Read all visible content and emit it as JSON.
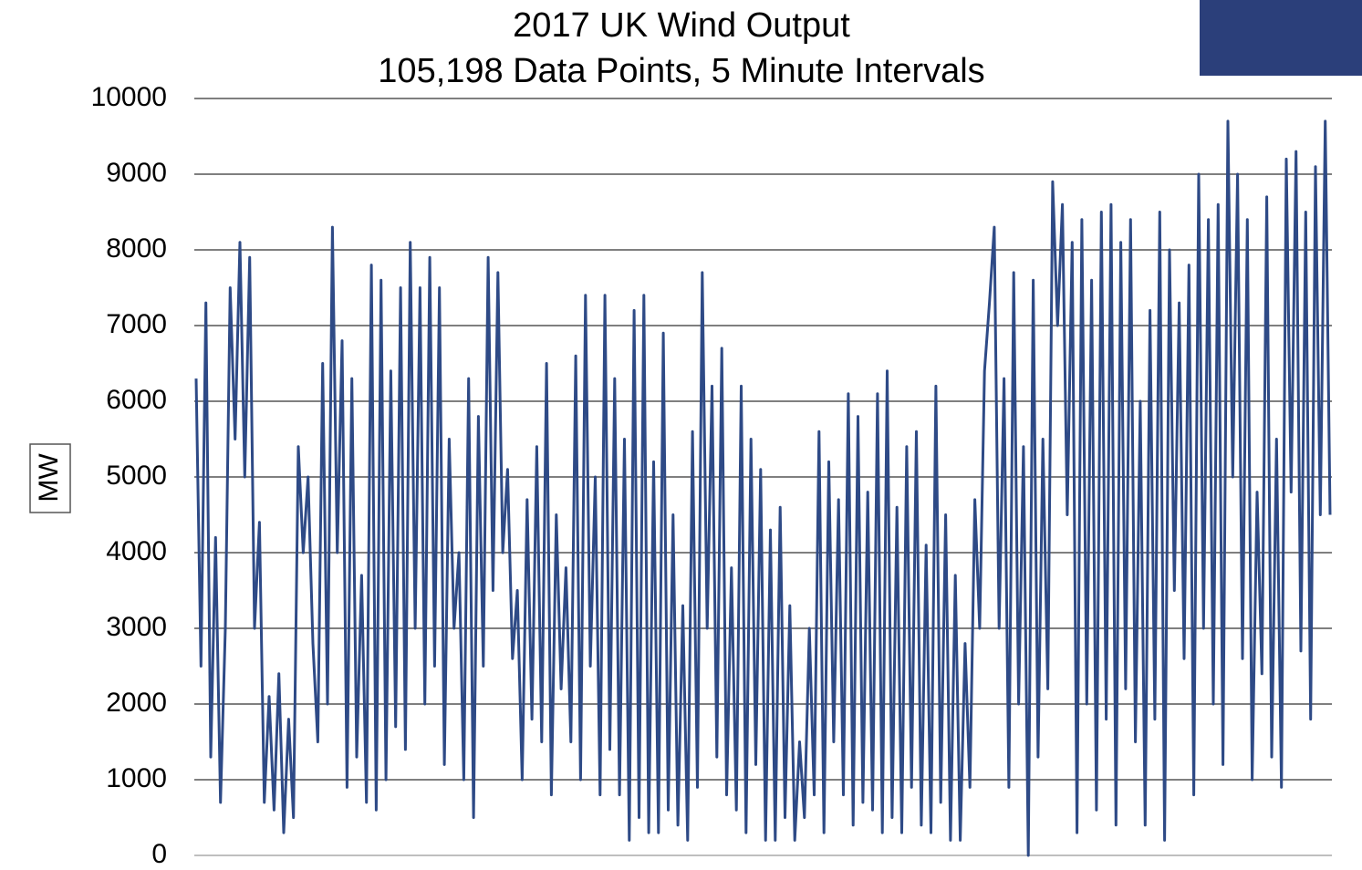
{
  "chart_data": {
    "type": "line",
    "title": "2017 UK Wind Output",
    "subtitle": "105,198 Data Points, 5 Minute Intervals",
    "y_label": "MW",
    "ylim": [
      0,
      10000
    ],
    "yticks": [
      0,
      1000,
      2000,
      3000,
      4000,
      5000,
      6000,
      7000,
      8000,
      9000,
      10000
    ],
    "grid": true,
    "series": [
      {
        "name": null,
        "color": "#2e4a86",
        "values": [
          6300,
          2500,
          7300,
          1300,
          4200,
          700,
          3000,
          7500,
          5500,
          8100,
          5000,
          7900,
          3000,
          4400,
          700,
          2100,
          600,
          2400,
          300,
          1800,
          500,
          5400,
          4000,
          5000,
          2800,
          1500,
          6500,
          2000,
          8300,
          4000,
          6800,
          900,
          6300,
          1300,
          3700,
          700,
          7800,
          600,
          7600,
          1000,
          6400,
          1700,
          7500,
          1400,
          8100,
          3000,
          7500,
          2000,
          7900,
          2500,
          7500,
          1200,
          5500,
          3000,
          4000,
          1000,
          6300,
          500,
          5800,
          2500,
          7900,
          3500,
          7700,
          4000,
          5100,
          2600,
          3500,
          1000,
          4700,
          1800,
          5400,
          1500,
          6500,
          800,
          4500,
          2200,
          3800,
          1500,
          6600,
          1000,
          7400,
          2500,
          5000,
          800,
          7400,
          1400,
          6300,
          800,
          5500,
          200,
          7200,
          500,
          7400,
          300,
          5200,
          300,
          6900,
          600,
          4500,
          400,
          3300,
          200,
          5600,
          900,
          7700,
          3000,
          6200,
          1300,
          6700,
          800,
          3800,
          600,
          6200,
          300,
          5500,
          1200,
          5100,
          200,
          4300,
          200,
          4600,
          500,
          3300,
          200,
          1500,
          500,
          3000,
          800,
          5600,
          300,
          5200,
          1500,
          4700,
          800,
          6100,
          400,
          5800,
          700,
          4800,
          600,
          6100,
          300,
          6400,
          500,
          4600,
          300,
          5400,
          900,
          5600,
          400,
          4100,
          300,
          6200,
          700,
          4500,
          200,
          3700,
          200,
          2800,
          900,
          4700,
          3000,
          6400,
          7300,
          8300,
          3000,
          6300,
          900,
          7700,
          2000,
          5400,
          0,
          7600,
          1300,
          5500,
          2200,
          8900,
          7000,
          8600,
          4500,
          8100,
          300,
          8400,
          2000,
          7600,
          600,
          8500,
          1800,
          8600,
          400,
          8100,
          2200,
          8400,
          1500,
          6000,
          400,
          7200,
          1800,
          8500,
          200,
          8000,
          3500,
          7300,
          2600,
          7800,
          800,
          9000,
          3000,
          8400,
          2000,
          8600,
          1200,
          9700,
          5000,
          9000,
          2600,
          8400,
          1000,
          4800,
          2400,
          8700,
          1300,
          5500,
          900,
          9200,
          4800,
          9300,
          2700,
          8500,
          1800,
          9100,
          4500,
          9700,
          4500
        ]
      }
    ]
  }
}
